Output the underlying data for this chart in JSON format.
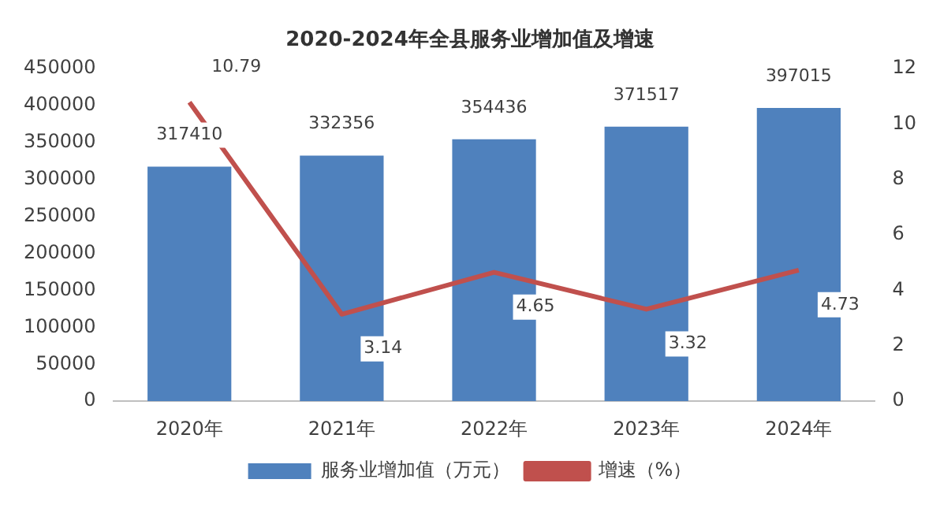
{
  "chart_data": {
    "type": "bar",
    "title": "2020-2024年全县服务业增加值及增速",
    "categories": [
      "2020年",
      "2021年",
      "2022年",
      "2023年",
      "2024年"
    ],
    "series": [
      {
        "name": "服务业增加值（万元）",
        "color": "#4f81bd",
        "values": [
          317410,
          332356,
          354436,
          371517,
          397015
        ]
      },
      {
        "name": "增速（%）",
        "type": "line",
        "axis": "y2",
        "color": "#c0504d",
        "values": [
          10.79,
          3.14,
          4.65,
          3.32,
          4.73
        ]
      }
    ],
    "ylim": [
      0,
      450000
    ],
    "yticks": [
      0,
      50000,
      100000,
      150000,
      200000,
      250000,
      300000,
      350000,
      400000,
      450000
    ],
    "y2lim": [
      0,
      12
    ],
    "y2ticks": [
      0,
      2,
      4,
      6,
      8,
      10,
      12
    ],
    "data_labels": true,
    "grid": false,
    "legend": "bottom",
    "marker": "none",
    "line_style": "solid"
  }
}
